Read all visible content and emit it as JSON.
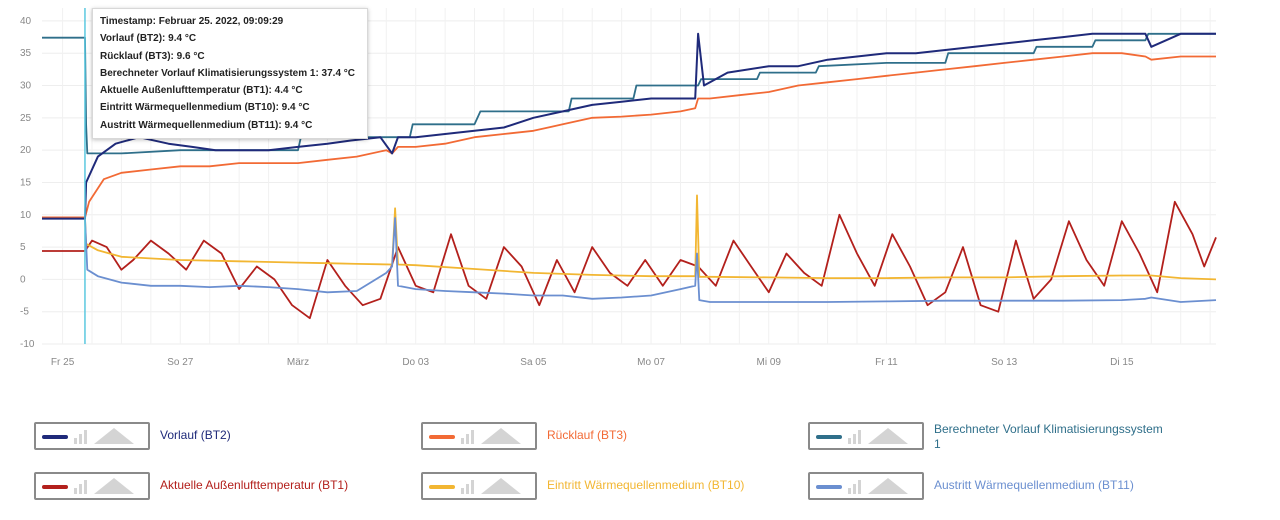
{
  "chart_data": {
    "type": "line",
    "ylim": [
      -10,
      42
    ],
    "yticks": [
      -10,
      -5,
      0,
      5,
      10,
      15,
      20,
      25,
      30,
      35,
      40
    ],
    "xlim": [
      -0.35,
      19.6
    ],
    "xticks": [
      {
        "x": 0,
        "label": "Fr 25"
      },
      {
        "x": 2,
        "label": "So 27"
      },
      {
        "x": 4,
        "label": "März"
      },
      {
        "x": 6,
        "label": "Do 03"
      },
      {
        "x": 8,
        "label": "Sa 05"
      },
      {
        "x": 10,
        "label": "Mo 07"
      },
      {
        "x": 12,
        "label": "Mi 09"
      },
      {
        "x": 14,
        "label": "Fr 11"
      },
      {
        "x": 16,
        "label": "So 13"
      },
      {
        "x": 18,
        "label": "Di 15"
      }
    ],
    "grid": true,
    "cursor_x": 0.38,
    "legend_position": "bottom",
    "tooltip": [
      "Timestamp: Februar 25. 2022, 09:09:29",
      "Vorlauf (BT2): 9.4 °C",
      "Rücklauf (BT3): 9.6 °C",
      "Berechneter Vorlauf Klimatisierungssystem 1: 37.4 °C",
      "Aktuelle Außenlufttemperatur (BT1): 4.4 °C",
      "Eintritt Wärmequellenmedium (BT10): 9.4 °C",
      "Austritt Wärmequellenmedium (BT11): 9.4 °C"
    ],
    "series": [
      {
        "name": "Vorlauf (BT2)",
        "color": "#1f2a7a",
        "x": [
          -0.35,
          0.38,
          0.4,
          0.6,
          0.9,
          1.3,
          1.8,
          2.2,
          2.6,
          3.0,
          3.5,
          4.0,
          4.5,
          4.9,
          5.4,
          5.6,
          5.7,
          6.0,
          6.5,
          7.0,
          7.5,
          8.0,
          8.5,
          9.0,
          9.5,
          10.0,
          10.5,
          10.75,
          10.8,
          10.9,
          11.3,
          12.0,
          12.5,
          13.0,
          14.0,
          14.5,
          15.0,
          15.5,
          16.0,
          16.5,
          17.0,
          17.5,
          18.0,
          18.4,
          18.5,
          19.0,
          19.6
        ],
        "y": [
          9.4,
          9.4,
          15,
          19,
          21,
          22,
          21,
          20.5,
          20,
          20,
          20,
          20.5,
          21,
          21.5,
          22,
          19.5,
          22,
          22,
          22.5,
          23,
          23.5,
          25,
          26,
          27,
          27.5,
          28,
          28,
          28,
          38,
          30,
          32,
          33,
          33,
          34,
          35,
          35,
          35.5,
          36,
          36.5,
          37,
          37.5,
          38,
          38,
          38,
          36,
          38,
          38
        ]
      },
      {
        "name": "Rücklauf (BT3)",
        "color": "#f26a35",
        "x": [
          -0.35,
          0.38,
          0.45,
          0.7,
          1.0,
          1.5,
          2.0,
          2.5,
          3.0,
          3.5,
          4.0,
          4.5,
          5.0,
          5.5,
          5.6,
          5.7,
          6.0,
          6.5,
          7.0,
          7.5,
          8.0,
          8.5,
          9.0,
          9.5,
          10.0,
          10.5,
          10.75,
          10.8,
          11.0,
          11.5,
          12.0,
          12.5,
          13.0,
          13.5,
          14.0,
          14.5,
          15.0,
          15.5,
          16.0,
          16.5,
          17.0,
          17.5,
          18.0,
          18.4,
          18.5,
          19.0,
          19.6
        ],
        "y": [
          9.6,
          9.6,
          12,
          15.5,
          16.5,
          17,
          17.5,
          17.5,
          18,
          18,
          18,
          18.5,
          19,
          20,
          19.5,
          20.5,
          20.5,
          21,
          22,
          22.5,
          23,
          24,
          25,
          25.2,
          25.5,
          26,
          26.5,
          28,
          28,
          28.5,
          29,
          30,
          30.5,
          31,
          31.5,
          32,
          32.5,
          33,
          33.5,
          34,
          34.5,
          35,
          35,
          34.5,
          34,
          34.5,
          34.5
        ]
      },
      {
        "name": "Berechneter Vorlauf Klimatisierungssystem 1",
        "color": "#2f6f8a",
        "x": [
          -0.35,
          0.38,
          0.4,
          0.42,
          1.0,
          2.0,
          3.0,
          4.0,
          4.05,
          5.0,
          5.9,
          5.95,
          7.0,
          7.1,
          8.0,
          8.6,
          8.65,
          9.7,
          9.75,
          10.8,
          10.85,
          11.8,
          11.85,
          12.8,
          12.85,
          14.0,
          15.0,
          15.05,
          16.0,
          16.5,
          16.55,
          17.5,
          17.55,
          18.4,
          18.45,
          19.6
        ],
        "y": [
          37.4,
          37.4,
          24,
          19.5,
          19.5,
          20,
          20,
          20,
          22,
          22,
          22,
          24,
          24,
          26,
          26,
          26,
          28,
          28,
          30,
          30,
          31,
          31,
          32,
          32,
          33,
          33.5,
          33.5,
          35,
          35,
          35,
          36,
          36,
          37,
          37,
          38,
          38
        ]
      },
      {
        "name": "Aktuelle Außenlufttemperatur (BT1)",
        "color": "#b3201c",
        "x": [
          -0.35,
          0.38,
          0.5,
          0.75,
          1.0,
          1.2,
          1.5,
          1.8,
          2.1,
          2.4,
          2.7,
          3.0,
          3.3,
          3.6,
          3.9,
          4.2,
          4.5,
          4.8,
          5.1,
          5.4,
          5.7,
          6.0,
          6.3,
          6.6,
          6.9,
          7.2,
          7.5,
          7.8,
          8.1,
          8.4,
          8.7,
          9.0,
          9.3,
          9.6,
          9.9,
          10.2,
          10.5,
          10.8,
          11.1,
          11.4,
          11.7,
          12.0,
          12.3,
          12.6,
          12.9,
          13.2,
          13.5,
          13.8,
          14.1,
          14.4,
          14.7,
          15.0,
          15.3,
          15.6,
          15.9,
          16.2,
          16.5,
          16.8,
          17.1,
          17.4,
          17.7,
          18.0,
          18.3,
          18.6,
          18.9,
          19.2,
          19.4,
          19.6
        ],
        "y": [
          4.4,
          4.4,
          6,
          5,
          1.5,
          3,
          6,
          4,
          1.5,
          6,
          4,
          -1.5,
          2,
          0,
          -4,
          -6,
          3,
          -1,
          -4,
          -3,
          5,
          -1,
          -2,
          7,
          -1,
          -3,
          5,
          2,
          -4,
          3,
          -2,
          5,
          1,
          -1,
          3,
          -1,
          3,
          2,
          -1,
          6,
          2,
          -2,
          4,
          1,
          -1,
          10,
          4,
          -1,
          7,
          2,
          -4,
          -2,
          5,
          -4,
          -5,
          6,
          -3,
          0,
          9,
          3,
          -1,
          9,
          4,
          -2,
          12,
          7,
          2,
          6.5
        ]
      },
      {
        "name": "Eintritt Wärmequellenmedium (BT10)",
        "color": "#f2b632",
        "x": [
          -0.35,
          0.38,
          0.4,
          0.6,
          1.0,
          2.0,
          3.0,
          4.0,
          4.5,
          5.0,
          5.6,
          5.65,
          5.7,
          6.0,
          7.0,
          8.0,
          9.0,
          10.0,
          10.75,
          10.78,
          10.82,
          11.0,
          12.0,
          13.0,
          14.0,
          15.0,
          16.0,
          17.0,
          18.0,
          18.5,
          19.0,
          19.6
        ],
        "y": [
          9.4,
          9.4,
          5.5,
          4.5,
          3.5,
          3.0,
          2.8,
          2.6,
          2.5,
          2.4,
          2.3,
          11,
          2.3,
          2.2,
          1.6,
          1.0,
          0.7,
          0.5,
          0.5,
          13,
          0.4,
          0.4,
          0.3,
          0.2,
          0.2,
          0.3,
          0.3,
          0.5,
          0.6,
          0.6,
          0.2,
          0.0
        ]
      },
      {
        "name": "Austritt Wärmequellenmedium (BT11)",
        "color": "#6b8fd0",
        "x": [
          -0.35,
          0.38,
          0.42,
          0.6,
          1.0,
          1.5,
          2.0,
          2.5,
          3.0,
          3.5,
          4.0,
          4.5,
          5.0,
          5.5,
          5.6,
          5.65,
          5.7,
          6.0,
          6.5,
          7.0,
          7.5,
          8.0,
          8.5,
          9.0,
          9.5,
          10.0,
          10.5,
          10.75,
          10.78,
          10.82,
          11.0,
          12.0,
          13.0,
          14.0,
          15.0,
          16.0,
          17.0,
          18.0,
          18.4,
          18.5,
          19.0,
          19.6
        ],
        "y": [
          9.4,
          9.4,
          1.5,
          0.5,
          -0.5,
          -1.0,
          -1.0,
          -1.2,
          -1.0,
          -1.2,
          -1.5,
          -2.0,
          -1.8,
          1.0,
          2.0,
          9.5,
          -1.0,
          -1.5,
          -1.8,
          -2.0,
          -2.2,
          -2.5,
          -2.5,
          -3.0,
          -2.8,
          -2.5,
          -1.5,
          -1.0,
          4.0,
          -3.2,
          -3.5,
          -3.5,
          -3.5,
          -3.4,
          -3.3,
          -3.3,
          -3.3,
          -3.2,
          -3.0,
          -2.8,
          -3.5,
          -3.2
        ]
      }
    ]
  }
}
